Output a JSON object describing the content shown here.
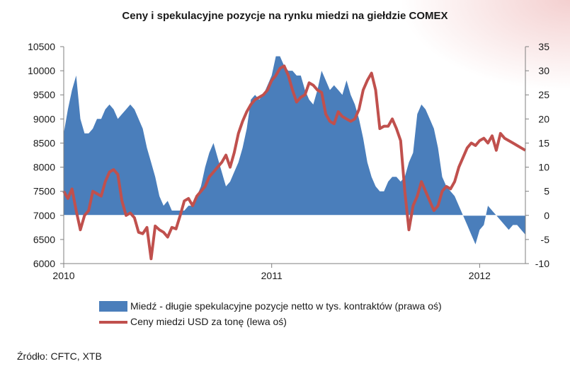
{
  "title": "Ceny i spekulacyjne pozycje na rynku miedzi na giełdzie COMEX",
  "source": "Źródło: CFTC, XTB",
  "legend": {
    "area_label": "Miedź - długie spekulacyjne pozycje netto w tys. kontraktów (prawa oś)",
    "line_label": "Ceny miedzi USD za tonę (lewa oś)"
  },
  "colors": {
    "area": "#4a7ebb",
    "line": "#c0504d",
    "axis": "#7f7f7f"
  },
  "chart_data": {
    "type": "area",
    "x_ticks": [
      "2010",
      "2011",
      "2012"
    ],
    "y_left": {
      "label": "",
      "range": [
        6000,
        10500
      ],
      "ticks": [
        6000,
        6500,
        7000,
        7500,
        8000,
        8500,
        9000,
        9500,
        10000,
        10500
      ]
    },
    "y_right": {
      "label": "",
      "range": [
        -10,
        35
      ],
      "ticks": [
        -10,
        -5,
        0,
        5,
        10,
        15,
        20,
        25,
        30,
        35
      ]
    },
    "x_range": [
      2010.0,
      2012.22
    ],
    "series": [
      {
        "name": "Miedź - długie spekulacyjne pozycje netto w tys. kontraktów (prawa oś)",
        "type": "area",
        "axis": "right",
        "x": [
          2010.0,
          2010.02,
          2010.04,
          2010.06,
          2010.08,
          2010.1,
          2010.12,
          2010.14,
          2010.16,
          2010.18,
          2010.2,
          2010.22,
          2010.24,
          2010.26,
          2010.28,
          2010.3,
          2010.32,
          2010.34,
          2010.36,
          2010.38,
          2010.4,
          2010.42,
          2010.44,
          2010.46,
          2010.48,
          2010.5,
          2010.52,
          2010.54,
          2010.56,
          2010.58,
          2010.6,
          2010.62,
          2010.64,
          2010.66,
          2010.68,
          2010.7,
          2010.72,
          2010.74,
          2010.76,
          2010.78,
          2010.8,
          2010.82,
          2010.84,
          2010.86,
          2010.88,
          2010.9,
          2010.92,
          2010.94,
          2010.96,
          2010.98,
          2011.0,
          2011.02,
          2011.04,
          2011.06,
          2011.08,
          2011.1,
          2011.12,
          2011.14,
          2011.16,
          2011.18,
          2011.2,
          2011.22,
          2011.24,
          2011.26,
          2011.28,
          2011.3,
          2011.32,
          2011.34,
          2011.36,
          2011.38,
          2011.4,
          2011.42,
          2011.44,
          2011.46,
          2011.48,
          2011.5,
          2011.52,
          2011.54,
          2011.56,
          2011.58,
          2011.6,
          2011.62,
          2011.64,
          2011.66,
          2011.68,
          2011.7,
          2011.72,
          2011.74,
          2011.76,
          2011.78,
          2011.8,
          2011.82,
          2011.84,
          2011.86,
          2011.88,
          2011.9,
          2011.92,
          2011.94,
          2011.96,
          2011.98,
          2012.0,
          2012.02,
          2012.04,
          2012.06,
          2012.08,
          2012.1,
          2012.12,
          2012.14,
          2012.16,
          2012.18,
          2012.2,
          2012.22
        ],
        "values": [
          17,
          22,
          26,
          29,
          20,
          17,
          17,
          18,
          20,
          20,
          22,
          23,
          22,
          20,
          21,
          22,
          23,
          22,
          20,
          18,
          14,
          11,
          8,
          4,
          2,
          3,
          1,
          1,
          1,
          1,
          2,
          2,
          4,
          6,
          10,
          13,
          15,
          12,
          9,
          6,
          7,
          9,
          11,
          14,
          18,
          24,
          25,
          24,
          25,
          27,
          29,
          33,
          33,
          31,
          30,
          30,
          29,
          29,
          26,
          24,
          23,
          26,
          30,
          28,
          26,
          27,
          26,
          25,
          28,
          25,
          23,
          20,
          16,
          11,
          8,
          6,
          5,
          5,
          7,
          8,
          8,
          7,
          8,
          11,
          13,
          21,
          23,
          22,
          20,
          18,
          14,
          8,
          6,
          5,
          4,
          2,
          0,
          -2,
          -4,
          -6,
          -3,
          -2,
          2,
          1,
          0,
          -1,
          -2,
          -3,
          -2,
          -2,
          -3,
          -4
        ]
      },
      {
        "name": "Ceny miedzi USD za tonę (lewa oś)",
        "type": "line",
        "axis": "left",
        "x": [
          2010.0,
          2010.02,
          2010.04,
          2010.06,
          2010.08,
          2010.1,
          2010.12,
          2010.14,
          2010.16,
          2010.18,
          2010.2,
          2010.22,
          2010.24,
          2010.26,
          2010.28,
          2010.3,
          2010.32,
          2010.34,
          2010.36,
          2010.38,
          2010.4,
          2010.42,
          2010.44,
          2010.46,
          2010.48,
          2010.5,
          2010.52,
          2010.54,
          2010.56,
          2010.58,
          2010.6,
          2010.62,
          2010.64,
          2010.66,
          2010.68,
          2010.7,
          2010.72,
          2010.74,
          2010.76,
          2010.78,
          2010.8,
          2010.82,
          2010.84,
          2010.86,
          2010.88,
          2010.9,
          2010.92,
          2010.94,
          2010.96,
          2010.98,
          2011.0,
          2011.02,
          2011.04,
          2011.06,
          2011.08,
          2011.1,
          2011.12,
          2011.14,
          2011.16,
          2011.18,
          2011.2,
          2011.22,
          2011.24,
          2011.26,
          2011.28,
          2011.3,
          2011.32,
          2011.34,
          2011.36,
          2011.38,
          2011.4,
          2011.42,
          2011.44,
          2011.46,
          2011.48,
          2011.5,
          2011.52,
          2011.54,
          2011.56,
          2011.58,
          2011.6,
          2011.62,
          2011.64,
          2011.66,
          2011.68,
          2011.7,
          2011.72,
          2011.74,
          2011.76,
          2011.78,
          2011.8,
          2011.82,
          2011.84,
          2011.86,
          2011.88,
          2011.9,
          2011.92,
          2011.94,
          2011.96,
          2011.98,
          2012.0,
          2012.02,
          2012.04,
          2012.06,
          2012.08,
          2012.1,
          2012.12,
          2012.14,
          2012.16,
          2012.18,
          2012.2,
          2012.22
        ],
        "values": [
          7500,
          7350,
          7550,
          7100,
          6700,
          7000,
          7100,
          7500,
          7450,
          7400,
          7700,
          7900,
          7950,
          7850,
          7300,
          7000,
          7050,
          6950,
          6650,
          6620,
          6750,
          6100,
          6780,
          6700,
          6650,
          6550,
          6750,
          6720,
          7000,
          7300,
          7350,
          7200,
          7400,
          7500,
          7600,
          7800,
          7900,
          8000,
          8100,
          8250,
          8000,
          8300,
          8700,
          8950,
          9150,
          9300,
          9400,
          9450,
          9500,
          9600,
          9800,
          9900,
          10050,
          10100,
          9900,
          9600,
          9350,
          9450,
          9500,
          9750,
          9700,
          9600,
          9550,
          9100,
          8950,
          8900,
          9150,
          9050,
          9000,
          8950,
          9000,
          9200,
          9600,
          9800,
          9950,
          9600,
          8800,
          8850,
          8850,
          9000,
          8800,
          8550,
          7500,
          6700,
          7200,
          7400,
          7700,
          7500,
          7300,
          7100,
          7200,
          7500,
          7600,
          7550,
          7700,
          8000,
          8200,
          8400,
          8500,
          8450,
          8550,
          8600,
          8500,
          8650,
          8350,
          8700,
          8600,
          8550,
          8500,
          8450,
          8400,
          8350
        ]
      }
    ]
  }
}
